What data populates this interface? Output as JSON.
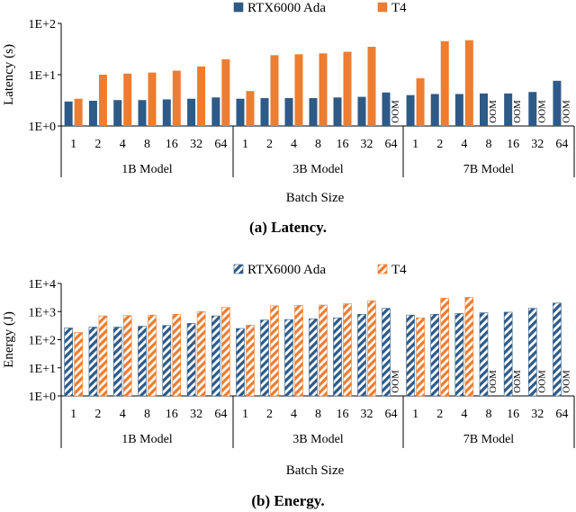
{
  "colors": {
    "rtx": "#2e5a87",
    "t4": "#ed7d31"
  },
  "chart_data": [
    {
      "type": "bar",
      "id": "latency",
      "title": "",
      "ylabel": "Latency (s)",
      "xlabel": "Batch Size",
      "yscale": "log",
      "ylim": [
        1,
        100
      ],
      "yticks": [
        "1E+0",
        "1E+1",
        "1E+2"
      ],
      "legend": [
        "RTX6000 Ada",
        "T4"
      ],
      "legend_placement": "top-center",
      "groups": [
        {
          "label": "1B Model",
          "batches": [
            "1",
            "2",
            "4",
            "8",
            "16",
            "32",
            "64"
          ]
        },
        {
          "label": "3B Model",
          "batches": [
            "1",
            "2",
            "4",
            "8",
            "16",
            "32",
            "64"
          ]
        },
        {
          "label": "7B Model",
          "batches": [
            "1",
            "2",
            "4",
            "8",
            "16",
            "32",
            "64"
          ]
        }
      ],
      "series": [
        {
          "name": "RTX6000 Ada",
          "values": [
            [
              3.0,
              3.1,
              3.2,
              3.2,
              3.3,
              3.4,
              3.6
            ],
            [
              3.4,
              3.5,
              3.5,
              3.5,
              3.6,
              3.7,
              4.5
            ],
            [
              4.0,
              4.2,
              4.2,
              4.3,
              4.3,
              4.6,
              7.6
            ]
          ]
        },
        {
          "name": "T4",
          "values": [
            [
              3.4,
              10.0,
              10.5,
              11.0,
              12.0,
              14.5,
              20.0
            ],
            [
              4.8,
              24.0,
              25.0,
              26.0,
              28.0,
              35.0,
              null
            ],
            [
              8.5,
              45.0,
              47.0,
              null,
              null,
              null,
              null
            ]
          ]
        }
      ],
      "oom_label": "OOM",
      "caption_label": "(a) Latency."
    },
    {
      "type": "bar",
      "id": "energy",
      "title": "",
      "ylabel": "Energy (J)",
      "xlabel": "Batch Size",
      "yscale": "log",
      "ylim": [
        1,
        10000
      ],
      "yticks": [
        "1E+0",
        "1E+1",
        "1E+2",
        "1E+3",
        "1E+4"
      ],
      "legend": [
        "RTX6000 Ada",
        "T4"
      ],
      "legend_placement": "top-center",
      "groups": [
        {
          "label": "1B Model",
          "batches": [
            "1",
            "2",
            "4",
            "8",
            "16",
            "32",
            "64"
          ]
        },
        {
          "label": "3B Model",
          "batches": [
            "1",
            "2",
            "4",
            "8",
            "16",
            "32",
            "64"
          ]
        },
        {
          "label": "7B Model",
          "batches": [
            "1",
            "2",
            "4",
            "8",
            "16",
            "32",
            "64"
          ]
        }
      ],
      "series": [
        {
          "name": "RTX6000 Ada",
          "values": [
            [
              260,
              280,
              280,
              300,
              320,
              380,
              700
            ],
            [
              250,
              500,
              520,
              550,
              600,
              800,
              1300
            ],
            [
              750,
              800,
              850,
              900,
              950,
              1300,
              2000
            ]
          ]
        },
        {
          "name": "T4",
          "values": [
            [
              180,
              700,
              720,
              750,
              800,
              1000,
              1400
            ],
            [
              330,
              1600,
              1650,
              1700,
              1900,
              2400,
              null
            ],
            [
              600,
              3000,
              3200,
              null,
              null,
              null,
              null
            ]
          ]
        }
      ],
      "oom_label": "OOM",
      "caption_label": "(b) Energy."
    }
  ]
}
